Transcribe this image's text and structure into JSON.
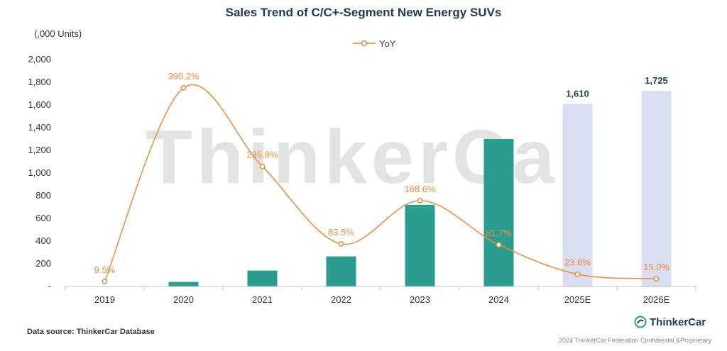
{
  "chart_data": {
    "type": "bar",
    "title": "Sales Trend of C/C+-Segment New Energy SUVs",
    "ylabel": "(,000 Units)",
    "categories": [
      "2019",
      "2020",
      "2021",
      "2022",
      "2023",
      "2024",
      "2025E",
      "2026E"
    ],
    "ylim": [
      0,
      2000
    ],
    "yticks": [
      "-",
      "200",
      "400",
      "600",
      "800",
      "1,000",
      "1,200",
      "1,400",
      "1,600",
      "1,800",
      "2,000"
    ],
    "series": [
      {
        "type": "bar",
        "values": [
          2,
          40,
          140,
          265,
          720,
          1300,
          1610,
          1725
        ],
        "data_labels": [
          "",
          "",
          "",
          "",
          "",
          "",
          "1,610",
          "1,725"
        ],
        "colors": [
          "#2a9d8f",
          "#2a9d8f",
          "#2a9d8f",
          "#2a9d8f",
          "#2a9d8f",
          "#2a9d8f",
          "#d9dff0",
          "#d9dff0"
        ]
      },
      {
        "name": "YoY",
        "type": "line",
        "values": [
          9.5,
          390.2,
          235.8,
          83.5,
          168.6,
          81.7,
          23.8,
          15.0
        ],
        "data_labels": [
          "9.5%",
          "390.2%",
          "235.8%",
          "83.5%",
          "168.6%",
          "81.7%",
          "23.8%",
          "15.0%"
        ],
        "color": "#ee8a3c"
      }
    ],
    "legend": "top-center",
    "grid": false
  },
  "watermark": "ThinkerCar",
  "footer": {
    "source": "Data source: ThinkerCar Database",
    "logo_text": "ThinkerCar",
    "copyright": "2024 ThinkerCar Federation Confidential &Proprietary"
  },
  "colors": {
    "bar": "#2a9d8f",
    "bar_estimate": "#d9dff0",
    "line": "#ee8a3c",
    "title": "#1f3b57"
  }
}
